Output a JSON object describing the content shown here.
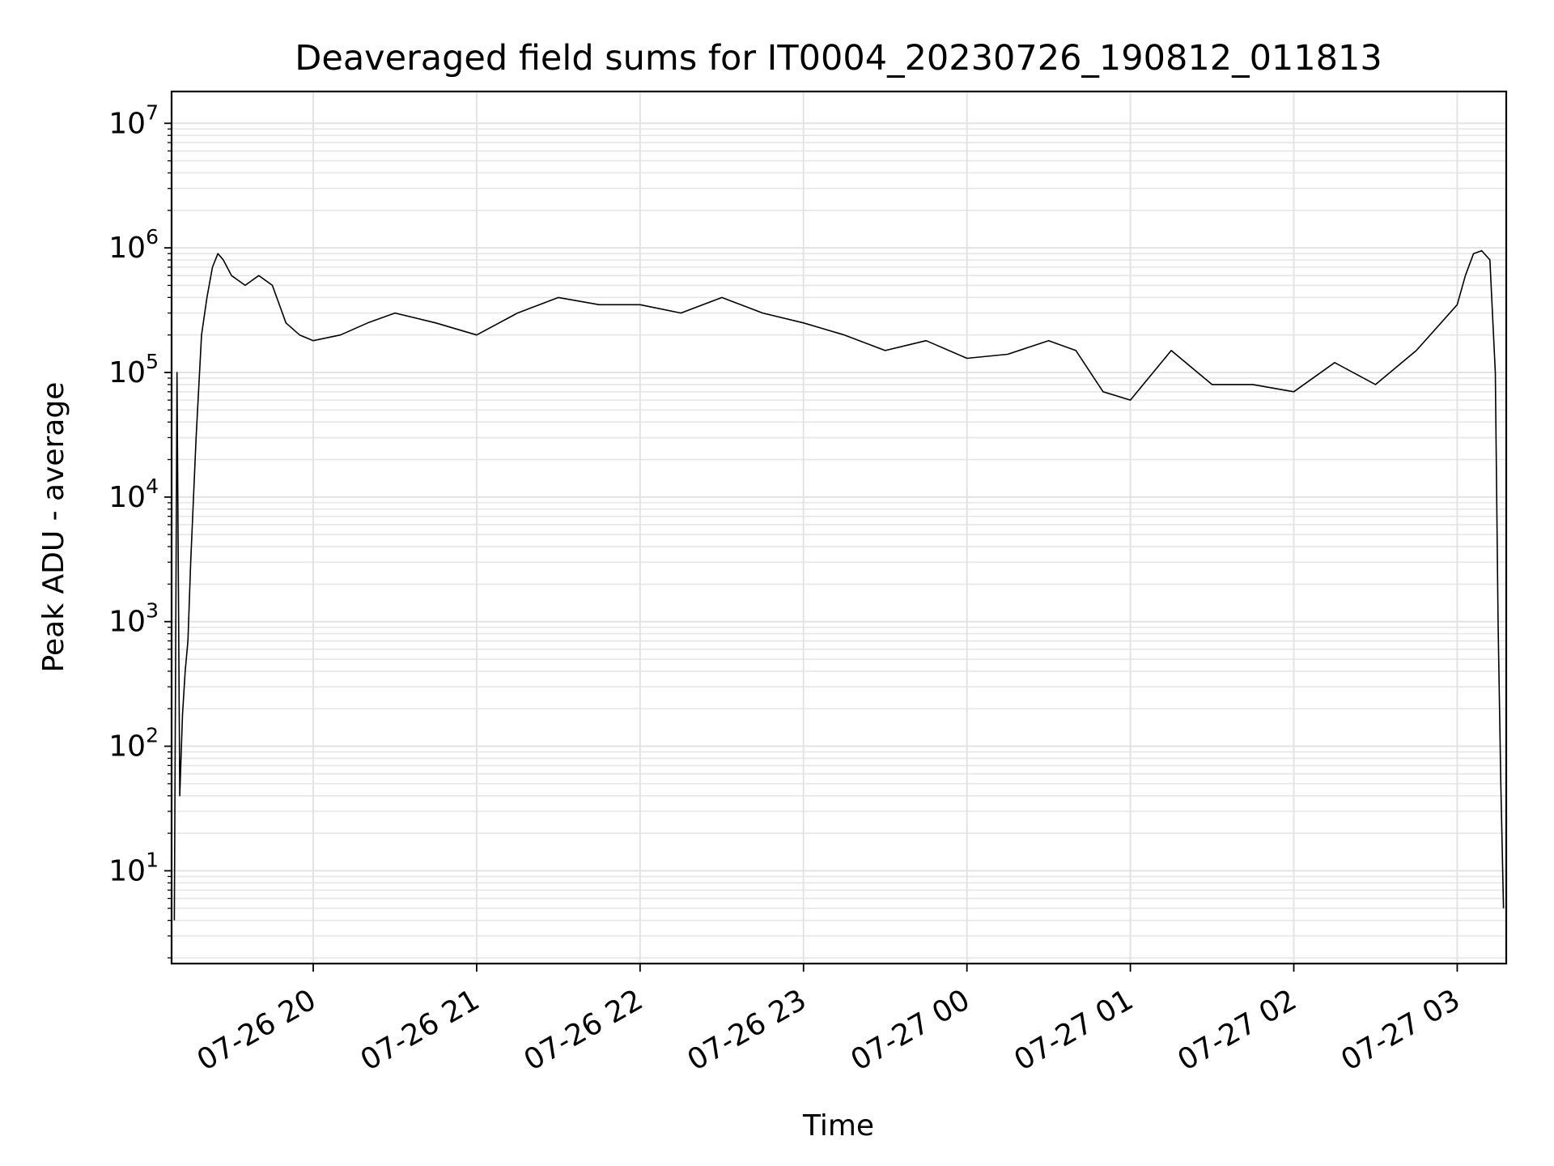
{
  "chart_data": {
    "type": "line",
    "title": "Deaveraged field sums for IT0004_20230726_190812_011813",
    "xlabel": "Time",
    "ylabel": "Peak ADU - average",
    "yscale": "log",
    "ylim": [
      1.8,
      18000000
    ],
    "xlim": [
      "2023-07-26 19:08",
      "2023-07-27 03:18"
    ],
    "x_ticks": [
      "07-26 20",
      "07-26 21",
      "07-26 22",
      "07-26 23",
      "07-27 00",
      "07-27 01",
      "07-27 02",
      "07-27 03"
    ],
    "y_ticks": [
      {
        "value": 10,
        "base": "10",
        "exp": "1"
      },
      {
        "value": 100,
        "base": "10",
        "exp": "2"
      },
      {
        "value": 1000,
        "base": "10",
        "exp": "3"
      },
      {
        "value": 10000,
        "base": "10",
        "exp": "4"
      },
      {
        "value": 100000,
        "base": "10",
        "exp": "5"
      },
      {
        "value": 1000000,
        "base": "10",
        "exp": "6"
      },
      {
        "value": 10000000,
        "base": "10",
        "exp": "7"
      }
    ],
    "grid": true,
    "line_color": "#000000",
    "series": [
      {
        "x": [
          "2023-07-26 19:09",
          "2023-07-26 19:10",
          "2023-07-26 19:11",
          "2023-07-26 19:12",
          "2023-07-26 19:13",
          "2023-07-26 19:14",
          "2023-07-26 19:15",
          "2023-07-26 19:17",
          "2023-07-26 19:19",
          "2023-07-26 19:21",
          "2023-07-26 19:23",
          "2023-07-26 19:25",
          "2023-07-26 19:27",
          "2023-07-26 19:30",
          "2023-07-26 19:35",
          "2023-07-26 19:40",
          "2023-07-26 19:45",
          "2023-07-26 19:50",
          "2023-07-26 19:55",
          "2023-07-26 20:00",
          "2023-07-26 20:10",
          "2023-07-26 20:20",
          "2023-07-26 20:30",
          "2023-07-26 20:45",
          "2023-07-26 21:00",
          "2023-07-26 21:15",
          "2023-07-26 21:30",
          "2023-07-26 21:45",
          "2023-07-26 22:00",
          "2023-07-26 22:15",
          "2023-07-26 22:30",
          "2023-07-26 22:45",
          "2023-07-26 23:00",
          "2023-07-26 23:15",
          "2023-07-26 23:30",
          "2023-07-26 23:45",
          "2023-07-27 00:00",
          "2023-07-27 00:15",
          "2023-07-27 00:30",
          "2023-07-27 00:40",
          "2023-07-27 00:50",
          "2023-07-27 01:00",
          "2023-07-27 01:15",
          "2023-07-27 01:30",
          "2023-07-27 01:45",
          "2023-07-27 02:00",
          "2023-07-27 02:15",
          "2023-07-27 02:30",
          "2023-07-27 02:45",
          "2023-07-27 03:00",
          "2023-07-27 03:03",
          "2023-07-27 03:06",
          "2023-07-27 03:09",
          "2023-07-27 03:12",
          "2023-07-27 03:14",
          "2023-07-27 03:15",
          "2023-07-27 03:16",
          "2023-07-27 03:17"
        ],
        "y": [
          4,
          100000,
          40,
          180,
          400,
          700,
          3000,
          30000,
          200000,
          400000,
          700000,
          900000,
          800000,
          600000,
          500000,
          600000,
          500000,
          250000,
          200000,
          180000,
          200000,
          250000,
          300000,
          250000,
          200000,
          300000,
          400000,
          350000,
          350000,
          300000,
          400000,
          300000,
          250000,
          200000,
          150000,
          180000,
          130000,
          140000,
          180000,
          150000,
          70000,
          60000,
          150000,
          80000,
          80000,
          70000,
          120000,
          80000,
          150000,
          350000,
          600000,
          900000,
          950000,
          800000,
          100000,
          1000,
          50,
          5
        ]
      }
    ]
  }
}
